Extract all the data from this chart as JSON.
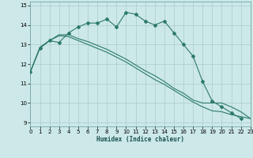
{
  "xlabel": "Humidex (Indice chaleur)",
  "bg_color": "#cce8e8",
  "grid_color": "#aacccc",
  "line_color": "#2d7a6a",
  "markersize": 2.0,
  "linewidth": 0.8,
  "xlim": [
    0,
    23
  ],
  "ylim": [
    8.8,
    15.2
  ],
  "yticks": [
    9,
    10,
    11,
    12,
    13,
    14,
    15
  ],
  "xticks": [
    0,
    1,
    2,
    3,
    4,
    5,
    6,
    7,
    8,
    9,
    10,
    11,
    12,
    13,
    14,
    15,
    16,
    17,
    18,
    19,
    20,
    21,
    22,
    23
  ],
  "curve1_x": [
    0,
    1,
    2,
    3,
    4,
    5,
    6,
    7,
    8,
    9,
    10,
    11,
    12,
    13,
    14,
    15,
    16,
    17,
    18,
    19,
    20,
    21,
    22
  ],
  "curve1_y": [
    11.6,
    12.8,
    13.2,
    13.1,
    13.6,
    13.9,
    14.1,
    14.1,
    14.3,
    13.9,
    14.65,
    14.55,
    14.2,
    14.0,
    14.2,
    13.6,
    13.0,
    12.4,
    11.1,
    10.1,
    9.8,
    9.5,
    9.2
  ],
  "curve2_x": [
    0,
    1,
    2,
    3,
    4,
    5,
    6,
    7,
    8,
    9,
    10,
    11,
    12,
    13,
    14,
    15,
    16,
    17,
    18,
    19,
    20,
    21,
    22,
    23
  ],
  "curve2_y": [
    11.6,
    12.85,
    13.2,
    13.5,
    13.5,
    13.3,
    13.15,
    12.95,
    12.75,
    12.5,
    12.25,
    11.95,
    11.65,
    11.4,
    11.1,
    10.75,
    10.5,
    10.15,
    10.0,
    10.0,
    10.0,
    9.8,
    9.55,
    9.2
  ],
  "curve3_x": [
    0,
    1,
    2,
    3,
    4,
    5,
    6,
    7,
    8,
    9,
    10,
    11,
    12,
    13,
    14,
    15,
    16,
    17,
    18,
    19,
    20,
    21,
    22,
    23
  ],
  "curve3_y": [
    11.6,
    12.85,
    13.2,
    13.45,
    13.4,
    13.2,
    13.0,
    12.8,
    12.6,
    12.35,
    12.1,
    11.8,
    11.5,
    11.2,
    10.95,
    10.65,
    10.35,
    10.05,
    9.8,
    9.6,
    9.55,
    9.4,
    9.3,
    9.2
  ]
}
